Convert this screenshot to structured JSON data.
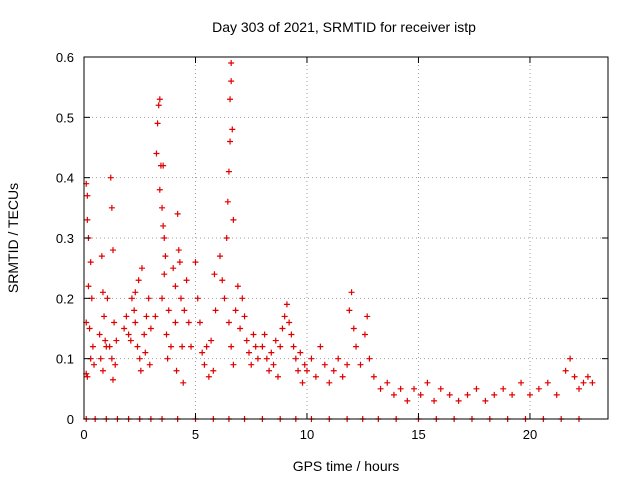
{
  "chart_data": {
    "type": "scatter",
    "title": "Day 303 of 2021, SRMTID for receiver istp",
    "xlabel": "GPS time / hours",
    "ylabel": "SRMTID / TECUs",
    "xlim": [
      0,
      23.5
    ],
    "ylim": [
      0,
      0.6
    ],
    "xticks": [
      0,
      5,
      10,
      15,
      20
    ],
    "xtick_labels": [
      "0",
      "5",
      "10",
      "15",
      "20"
    ],
    "yticks": [
      0,
      0.1,
      0.2,
      0.3,
      0.4,
      0.5,
      0.6
    ],
    "ytick_labels": [
      "0",
      "0.1",
      "0.2",
      "0.3",
      "0.4",
      "0.5",
      "0.6"
    ],
    "grid": true,
    "marker": "+",
    "color": "#e00000",
    "series": [
      {
        "name": "SRMTID",
        "points": [
          [
            0.1,
            0.39
          ],
          [
            0.15,
            0.37
          ],
          [
            0.15,
            0.33
          ],
          [
            0.2,
            0.3
          ],
          [
            0.2,
            0.22
          ],
          [
            0.1,
            0.16
          ],
          [
            0.1,
            0.075
          ],
          [
            0.15,
            0.07
          ],
          [
            0.25,
            0.15
          ],
          [
            0.3,
            0.26
          ],
          [
            0.35,
            0.2
          ],
          [
            0.4,
            0.12
          ],
          [
            0.3,
            0.1
          ],
          [
            0.45,
            0.09
          ],
          [
            0.8,
            0.27
          ],
          [
            0.85,
            0.21
          ],
          [
            0.9,
            0.17
          ],
          [
            0.7,
            0.14
          ],
          [
            0.75,
            0.1
          ],
          [
            0.95,
            0.13
          ],
          [
            1.0,
            0.12
          ],
          [
            1.05,
            0.2
          ],
          [
            0.85,
            0.08
          ],
          [
            1.2,
            0.4
          ],
          [
            1.25,
            0.35
          ],
          [
            1.3,
            0.28
          ],
          [
            1.35,
            0.16
          ],
          [
            1.15,
            0.12
          ],
          [
            1.25,
            0.1
          ],
          [
            1.4,
            0.09
          ],
          [
            1.3,
            0.065
          ],
          [
            1.45,
            0.13
          ],
          [
            1.8,
            0.15
          ],
          [
            1.9,
            0.17
          ],
          [
            2.0,
            0.14
          ],
          [
            2.1,
            0.13
          ],
          [
            2.15,
            0.2
          ],
          [
            2.25,
            0.18
          ],
          [
            2.3,
            0.16
          ],
          [
            2.4,
            0.12
          ],
          [
            2.5,
            0.1
          ],
          [
            2.55,
            0.08
          ],
          [
            2.3,
            0.21
          ],
          [
            2.45,
            0.23
          ],
          [
            2.6,
            0.25
          ],
          [
            2.7,
            0.14
          ],
          [
            2.75,
            0.11
          ],
          [
            2.8,
            0.17
          ],
          [
            2.9,
            0.2
          ],
          [
            2.95,
            0.09
          ],
          [
            3.0,
            0.15
          ],
          [
            3.2,
            0.17
          ],
          [
            3.25,
            0.44
          ],
          [
            3.3,
            0.49
          ],
          [
            3.35,
            0.52
          ],
          [
            3.4,
            0.53
          ],
          [
            3.4,
            0.38
          ],
          [
            3.45,
            0.42
          ],
          [
            3.5,
            0.35
          ],
          [
            3.55,
            0.32
          ],
          [
            3.6,
            0.3
          ],
          [
            3.6,
            0.24
          ],
          [
            3.5,
            0.2
          ],
          [
            3.7,
            0.14
          ],
          [
            3.75,
            0.1
          ],
          [
            3.8,
            0.18
          ],
          [
            3.9,
            0.12
          ],
          [
            3.65,
            0.27
          ],
          [
            3.55,
            0.42
          ],
          [
            4.0,
            0.25
          ],
          [
            4.1,
            0.22
          ],
          [
            4.1,
            0.16
          ],
          [
            4.2,
            0.34
          ],
          [
            4.25,
            0.28
          ],
          [
            4.3,
            0.26
          ],
          [
            4.35,
            0.2
          ],
          [
            4.4,
            0.12
          ],
          [
            4.15,
            0.08
          ],
          [
            4.45,
            0.06
          ],
          [
            4.5,
            0.18
          ],
          [
            4.6,
            0.23
          ],
          [
            4.7,
            0.16
          ],
          [
            4.8,
            0.12
          ],
          [
            5.0,
            0.26
          ],
          [
            5.1,
            0.2
          ],
          [
            5.2,
            0.16
          ],
          [
            5.3,
            0.11
          ],
          [
            5.4,
            0.09
          ],
          [
            5.5,
            0.12
          ],
          [
            5.6,
            0.07
          ],
          [
            5.7,
            0.13
          ],
          [
            5.8,
            0.08
          ],
          [
            5.85,
            0.24
          ],
          [
            5.9,
            0.18
          ],
          [
            6.1,
            0.27
          ],
          [
            6.2,
            0.23
          ],
          [
            6.3,
            0.2
          ],
          [
            6.4,
            0.3
          ],
          [
            6.45,
            0.36
          ],
          [
            6.5,
            0.41
          ],
          [
            6.55,
            0.46
          ],
          [
            6.55,
            0.53
          ],
          [
            6.6,
            0.56
          ],
          [
            6.6,
            0.59
          ],
          [
            6.65,
            0.48
          ],
          [
            6.7,
            0.33
          ],
          [
            6.5,
            0.16
          ],
          [
            6.6,
            0.12
          ],
          [
            6.7,
            0.09
          ],
          [
            6.8,
            0.18
          ],
          [
            6.9,
            0.22
          ],
          [
            7.0,
            0.15
          ],
          [
            7.1,
            0.2
          ],
          [
            7.2,
            0.17
          ],
          [
            7.3,
            0.13
          ],
          [
            7.4,
            0.11
          ],
          [
            7.5,
            0.09
          ],
          [
            7.6,
            0.14
          ],
          [
            7.7,
            0.12
          ],
          [
            7.8,
            0.1
          ],
          [
            8.0,
            0.12
          ],
          [
            8.1,
            0.14
          ],
          [
            8.2,
            0.1
          ],
          [
            8.3,
            0.08
          ],
          [
            8.4,
            0.11
          ],
          [
            8.5,
            0.09
          ],
          [
            8.6,
            0.13
          ],
          [
            8.7,
            0.07
          ],
          [
            8.8,
            0.12
          ],
          [
            8.9,
            0.15
          ],
          [
            9.0,
            0.17
          ],
          [
            9.1,
            0.19
          ],
          [
            9.2,
            0.16
          ],
          [
            9.3,
            0.14
          ],
          [
            9.4,
            0.12
          ],
          [
            9.5,
            0.1
          ],
          [
            9.6,
            0.08
          ],
          [
            9.7,
            0.11
          ],
          [
            9.8,
            0.06
          ],
          [
            9.9,
            0.09
          ],
          [
            10.0,
            0.08
          ],
          [
            10.2,
            0.1
          ],
          [
            10.4,
            0.07
          ],
          [
            10.6,
            0.12
          ],
          [
            10.8,
            0.09
          ],
          [
            11.0,
            0.06
          ],
          [
            11.2,
            0.08
          ],
          [
            11.4,
            0.1
          ],
          [
            11.6,
            0.07
          ],
          [
            11.8,
            0.09
          ],
          [
            11.9,
            0.18
          ],
          [
            12.0,
            0.21
          ],
          [
            12.1,
            0.15
          ],
          [
            12.2,
            0.12
          ],
          [
            12.4,
            0.09
          ],
          [
            12.6,
            0.14
          ],
          [
            12.7,
            0.17
          ],
          [
            12.8,
            0.1
          ],
          [
            13.0,
            0.07
          ],
          [
            13.3,
            0.05
          ],
          [
            13.6,
            0.06
          ],
          [
            13.9,
            0.04
          ],
          [
            14.2,
            0.05
          ],
          [
            14.5,
            0.03
          ],
          [
            14.8,
            0.05
          ],
          [
            15.1,
            0.04
          ],
          [
            15.4,
            0.06
          ],
          [
            15.7,
            0.03
          ],
          [
            16.0,
            0.05
          ],
          [
            16.4,
            0.04
          ],
          [
            16.8,
            0.03
          ],
          [
            17.2,
            0.04
          ],
          [
            17.6,
            0.05
          ],
          [
            18.0,
            0.03
          ],
          [
            18.4,
            0.04
          ],
          [
            18.8,
            0.05
          ],
          [
            19.2,
            0.04
          ],
          [
            19.6,
            0.06
          ],
          [
            20.0,
            0.04
          ],
          [
            20.4,
            0.05
          ],
          [
            20.8,
            0.06
          ],
          [
            21.2,
            0.04
          ],
          [
            21.6,
            0.08
          ],
          [
            21.8,
            0.1
          ],
          [
            22.0,
            0.07
          ],
          [
            22.2,
            0.05
          ],
          [
            22.4,
            0.06
          ],
          [
            22.6,
            0.07
          ],
          [
            22.8,
            0.06
          ],
          [
            0.1,
            0
          ],
          [
            0.5,
            0
          ],
          [
            1.0,
            0
          ],
          [
            1.5,
            0
          ],
          [
            2.0,
            0
          ],
          [
            2.5,
            0
          ],
          [
            3.0,
            0
          ],
          [
            3.5,
            0
          ],
          [
            4.2,
            0
          ],
          [
            5.0,
            0
          ],
          [
            5.8,
            0
          ],
          [
            6.5,
            0
          ],
          [
            7.2,
            0
          ],
          [
            8.0,
            0
          ],
          [
            8.8,
            0
          ],
          [
            9.5,
            0
          ],
          [
            10.2,
            0
          ],
          [
            11.0,
            0
          ],
          [
            11.8,
            0
          ],
          [
            12.5,
            0
          ],
          [
            13.2,
            0
          ],
          [
            14.0,
            0
          ],
          [
            15.0,
            0
          ],
          [
            15.8,
            0
          ],
          [
            16.6,
            0
          ],
          [
            17.4,
            0
          ],
          [
            18.2,
            0
          ],
          [
            19.0,
            0
          ],
          [
            19.8,
            0
          ],
          [
            20.6,
            0
          ],
          [
            21.4,
            0
          ],
          [
            22.2,
            0
          ]
        ]
      }
    ]
  }
}
